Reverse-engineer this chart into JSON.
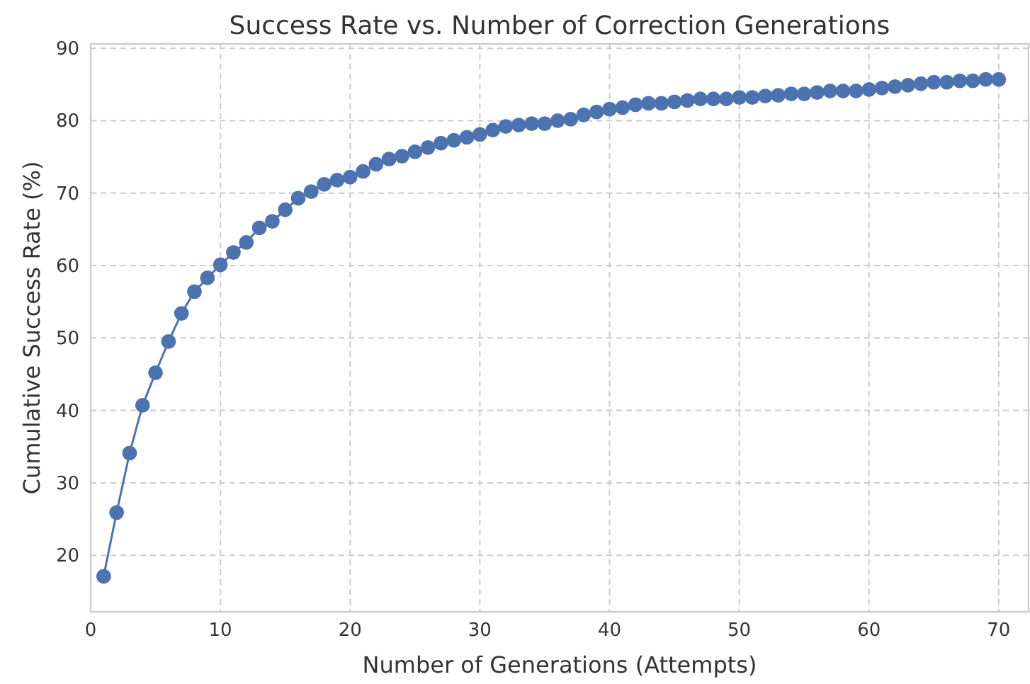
{
  "chart_data": {
    "type": "line",
    "title": "Success Rate vs. Number of Correction Generations",
    "xlabel": "Number of Generations (Attempts)",
    "ylabel": "Cumulative Success Rate (%)",
    "x": [
      1,
      2,
      3,
      4,
      5,
      6,
      7,
      8,
      9,
      10,
      11,
      12,
      13,
      14,
      15,
      16,
      17,
      18,
      19,
      20,
      21,
      22,
      23,
      24,
      25,
      26,
      27,
      28,
      29,
      30,
      31,
      32,
      33,
      34,
      35,
      36,
      37,
      38,
      39,
      40,
      41,
      42,
      43,
      44,
      45,
      46,
      47,
      48,
      49,
      50,
      51,
      52,
      53,
      54,
      55,
      56,
      57,
      58,
      59,
      60,
      61,
      62,
      63,
      64,
      65,
      66,
      67,
      68,
      69,
      70
    ],
    "series": [
      {
        "color": "#4c72b0",
        "values": [
          17.1,
          25.9,
          34.1,
          40.7,
          45.2,
          49.5,
          53.4,
          56.4,
          58.3,
          60.1,
          61.8,
          63.2,
          65.2,
          66.1,
          67.7,
          69.3,
          70.2,
          71.2,
          71.8,
          72.2,
          73.0,
          74.0,
          74.7,
          75.1,
          75.7,
          76.3,
          76.9,
          77.3,
          77.7,
          78.1,
          78.7,
          79.2,
          79.4,
          79.6,
          79.6,
          80.0,
          80.2,
          80.8,
          81.2,
          81.6,
          81.8,
          82.2,
          82.4,
          82.4,
          82.6,
          82.8,
          83.0,
          83.0,
          83.0,
          83.2,
          83.2,
          83.4,
          83.5,
          83.7,
          83.7,
          83.9,
          84.1,
          84.1,
          84.1,
          84.3,
          84.5,
          84.7,
          84.9,
          85.1,
          85.3,
          85.3,
          85.5,
          85.5,
          85.7,
          85.7
        ]
      }
    ],
    "xlim": [
      0,
      72.3
    ],
    "ylim": [
      12.2,
      90.6
    ],
    "xticks": [
      0,
      10,
      20,
      30,
      40,
      50,
      60,
      70
    ],
    "yticks": [
      20,
      30,
      40,
      50,
      60,
      70,
      80,
      90
    ],
    "grid": true,
    "marker": "circle",
    "line_style": "solid"
  }
}
